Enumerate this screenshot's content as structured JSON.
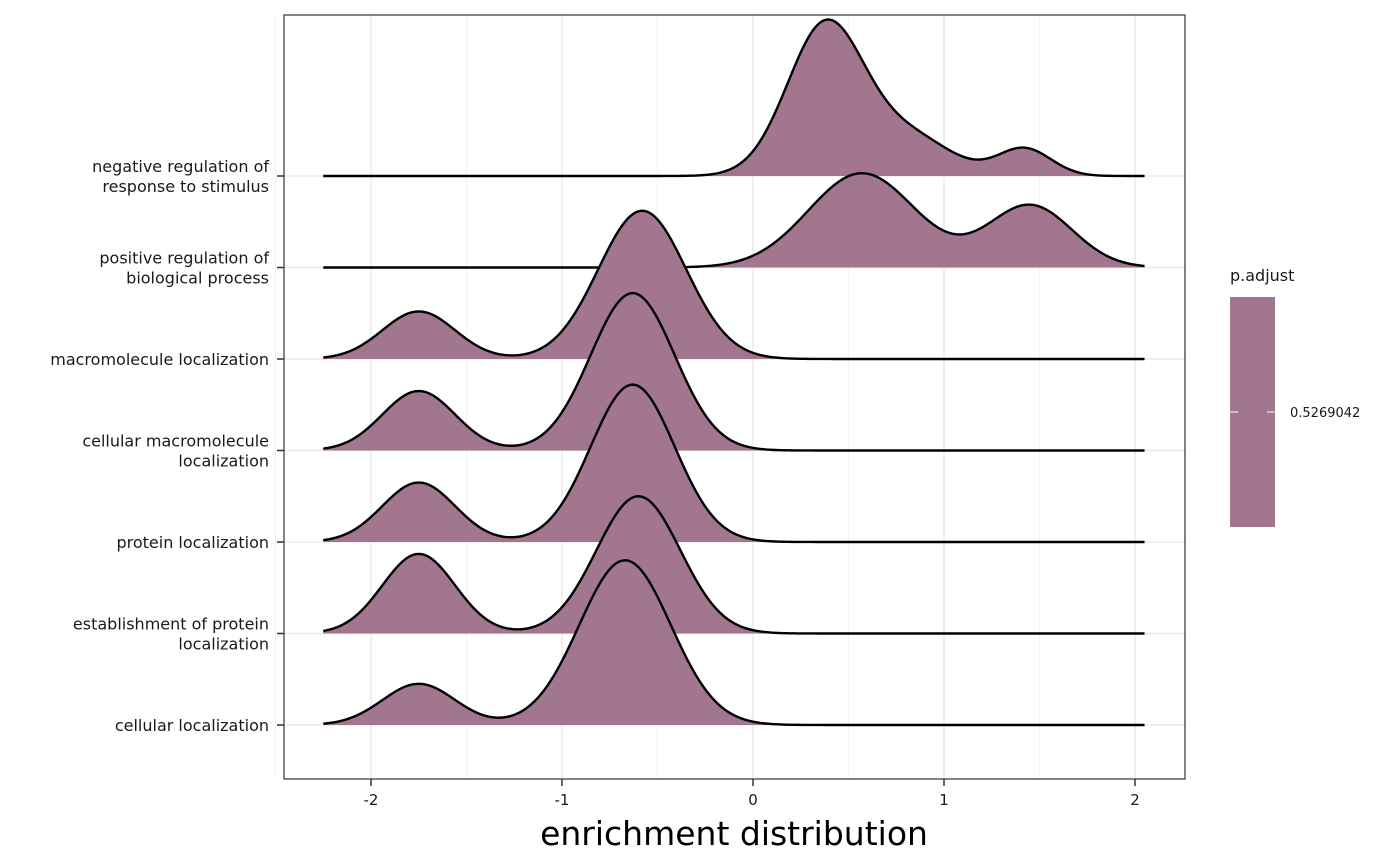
{
  "chart_data": {
    "type": "ridgeline",
    "xlabel": "enrichment distribution",
    "ylabel": "",
    "xlim": [
      -2.5,
      2.25
    ],
    "x_ticks": [
      -2,
      -1,
      0,
      1,
      2
    ],
    "x_tick_labels": [
      "-2",
      "-1",
      "0",
      "1",
      "2"
    ],
    "x_range_of_density": [
      -2.25,
      2.05
    ],
    "grid": true,
    "fill_color": "#a2768e",
    "line_color": "#000000",
    "legend": {
      "title": "p.adjust",
      "value_label": "0.5269042",
      "color": "#a2768e",
      "placement": "right"
    },
    "series": [
      {
        "name": "cellular localization",
        "label_lines": [
          "cellular localization"
        ],
        "components": [
          {
            "mean": -1.75,
            "sd": 0.19,
            "height": 0.45
          },
          {
            "mean": -0.67,
            "sd": 0.24,
            "height": 1.8
          }
        ]
      },
      {
        "name": "establishment of protein localization",
        "label_lines": [
          "establishment of protein",
          "localization"
        ],
        "components": [
          {
            "mean": -1.75,
            "sd": 0.19,
            "height": 0.87
          },
          {
            "mean": -0.6,
            "sd": 0.22,
            "height": 1.5
          }
        ]
      },
      {
        "name": "protein localization",
        "label_lines": [
          "protein localization"
        ],
        "components": [
          {
            "mean": -1.75,
            "sd": 0.19,
            "height": 0.65
          },
          {
            "mean": -0.63,
            "sd": 0.22,
            "height": 1.72
          }
        ]
      },
      {
        "name": "cellular macromolecule localization",
        "label_lines": [
          "cellular macromolecule",
          "localization"
        ],
        "components": [
          {
            "mean": -1.75,
            "sd": 0.19,
            "height": 0.65
          },
          {
            "mean": -0.63,
            "sd": 0.22,
            "height": 1.72
          }
        ]
      },
      {
        "name": "macromolecule localization",
        "label_lines": [
          "macromolecule localization"
        ],
        "components": [
          {
            "mean": -1.75,
            "sd": 0.19,
            "height": 0.52
          },
          {
            "mean": -0.58,
            "sd": 0.23,
            "height": 1.62
          }
        ]
      },
      {
        "name": "positive regulation of biological process",
        "label_lines": [
          "positive regulation of",
          "biological process"
        ],
        "components": [
          {
            "mean": 0.57,
            "sd": 0.28,
            "height": 1.03
          },
          {
            "mean": 1.45,
            "sd": 0.22,
            "height": 0.68
          }
        ]
      },
      {
        "name": "negative regulation of response to stimulus",
        "label_lines": [
          "negative regulation of",
          "response to stimulus"
        ],
        "components": [
          {
            "mean": 0.38,
            "sd": 0.2,
            "height": 1.65
          },
          {
            "mean": 0.82,
            "sd": 0.22,
            "height": 0.42
          },
          {
            "mean": 1.42,
            "sd": 0.14,
            "height": 0.3
          }
        ]
      }
    ]
  }
}
